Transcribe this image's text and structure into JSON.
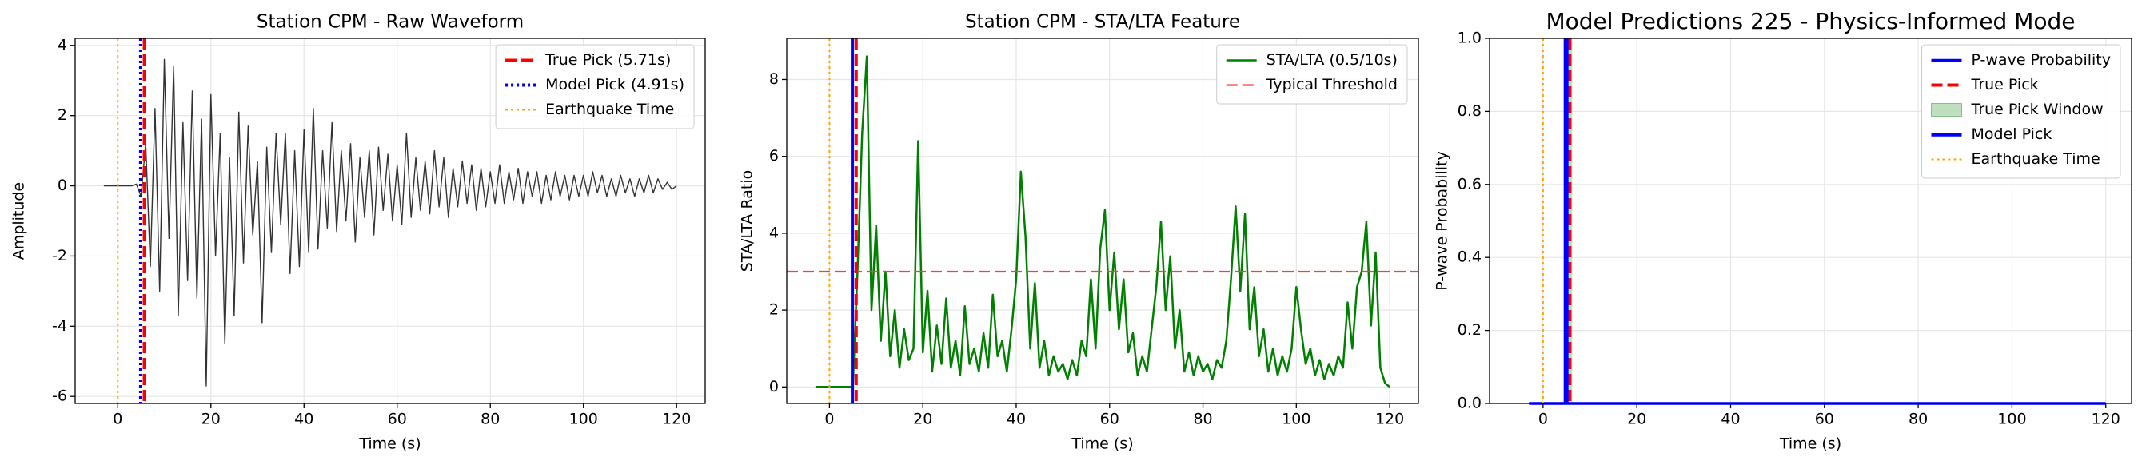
{
  "chart_data": [
    {
      "type": "line",
      "title": "Station CPM - Raw Waveform",
      "xlabel": "Time (s)",
      "ylabel": "Amplitude",
      "xlim": [
        -9.15,
        126.15
      ],
      "xticks": [
        0,
        20,
        40,
        60,
        80,
        100,
        120
      ],
      "ylim": [
        -6.2,
        4.2
      ],
      "yticks": [
        -6,
        -4,
        -2,
        0,
        2,
        4
      ],
      "grid": true,
      "legend": "upper right",
      "series": [
        {
          "color": "#333333",
          "width": 1.4,
          "x": [
            -3,
            -2,
            -1,
            0,
            1,
            2,
            3,
            4,
            5,
            6,
            7,
            8,
            9,
            10,
            11,
            12,
            13,
            14,
            15,
            16,
            17,
            18,
            19,
            20,
            21,
            22,
            23,
            24,
            25,
            26,
            27,
            28,
            29,
            30,
            31,
            32,
            33,
            34,
            35,
            36,
            37,
            38,
            39,
            40,
            41,
            42,
            43,
            44,
            45,
            46,
            47,
            48,
            49,
            50,
            51,
            52,
            53,
            54,
            55,
            56,
            57,
            58,
            59,
            60,
            61,
            62,
            63,
            64,
            65,
            66,
            67,
            68,
            69,
            70,
            71,
            72,
            73,
            74,
            75,
            76,
            77,
            78,
            79,
            80,
            81,
            82,
            83,
            84,
            85,
            86,
            87,
            88,
            89,
            90,
            91,
            92,
            93,
            94,
            95,
            96,
            97,
            98,
            99,
            100,
            101,
            102,
            103,
            104,
            105,
            106,
            107,
            108,
            109,
            110,
            111,
            112,
            113,
            114,
            115,
            116,
            117,
            118,
            119,
            120
          ],
          "values": [
            0,
            0,
            0,
            0,
            0,
            0,
            0,
            0.05,
            -0.3,
            1.2,
            -2.3,
            2.2,
            -3.0,
            3.6,
            -1.5,
            3.4,
            -3.7,
            1.8,
            -2.7,
            2.7,
            -3.2,
            1.9,
            -5.7,
            2.6,
            -2.0,
            1.5,
            -4.5,
            0.8,
            -3.7,
            2.1,
            -2.2,
            1.7,
            -1.4,
            0.7,
            -3.9,
            1.1,
            -1.9,
            1.5,
            -1.1,
            1.5,
            -2.5,
            1.0,
            -2.3,
            1.6,
            -1.9,
            2.2,
            -1.8,
            1.0,
            -1.2,
            1.8,
            -1.3,
            1.0,
            -1.0,
            1.2,
            -1.6,
            0.8,
            -0.9,
            1.0,
            -1.4,
            1.1,
            -0.7,
            0.9,
            -1.0,
            0.6,
            -1.1,
            1.5,
            -0.9,
            0.8,
            -0.7,
            0.7,
            -0.8,
            1.0,
            -0.6,
            0.8,
            -0.9,
            0.5,
            -0.6,
            0.7,
            -0.5,
            0.6,
            -0.7,
            0.5,
            -0.6,
            0.4,
            -0.5,
            0.6,
            -0.5,
            0.4,
            -0.4,
            0.5,
            -0.5,
            0.4,
            -0.3,
            0.4,
            -0.5,
            0.3,
            -0.4,
            0.4,
            -0.3,
            0.3,
            -0.4,
            0.3,
            -0.3,
            0.3,
            -0.3,
            0.4,
            -0.2,
            0.3,
            -0.3,
            0.2,
            -0.3,
            0.3,
            -0.2,
            0.2,
            -0.3,
            0.2,
            -0.2,
            0.3,
            -0.2,
            0.2,
            -0.1,
            0.1,
            -0.1,
            0.0
          ]
        }
      ],
      "overlays": [
        {
          "kind": "vline",
          "name": "True Pick (5.71s)",
          "x": 5.71,
          "color": "red",
          "style": "dashed",
          "width": 4
        },
        {
          "kind": "vline",
          "name": "Model Pick (4.91s)",
          "x": 4.91,
          "color": "blue",
          "style": "dotted",
          "width": 4
        },
        {
          "kind": "vline",
          "name": "Earthquake Time",
          "x": 0,
          "color": "orange",
          "style": "dotted",
          "width": 2
        }
      ]
    },
    {
      "type": "line",
      "title": "Station CPM - STA/LTA Feature",
      "xlabel": "Time (s)",
      "ylabel": "STA/LTA Ratio",
      "xlim": [
        -9.15,
        126.15
      ],
      "xticks": [
        0,
        20,
        40,
        60,
        80,
        100,
        120
      ],
      "ylim": [
        -0.43,
        9.07
      ],
      "yticks": [
        0,
        2,
        4,
        6,
        8
      ],
      "grid": true,
      "legend": "upper right",
      "series": [
        {
          "name": "STA/LTA (0.5/10s)",
          "color": "green",
          "width": 2.5,
          "x": [
            -3,
            -2,
            -1,
            0,
            1,
            2,
            3,
            4,
            5,
            6,
            7,
            8,
            9,
            10,
            11,
            12,
            13,
            14,
            15,
            16,
            17,
            18,
            19,
            20,
            21,
            22,
            23,
            24,
            25,
            26,
            27,
            28,
            29,
            30,
            31,
            32,
            33,
            34,
            35,
            36,
            37,
            38,
            39,
            40,
            41,
            42,
            43,
            44,
            45,
            46,
            47,
            48,
            49,
            50,
            51,
            52,
            53,
            54,
            55,
            56,
            57,
            58,
            59,
            60,
            61,
            62,
            63,
            64,
            65,
            66,
            67,
            68,
            69,
            70,
            71,
            72,
            73,
            74,
            75,
            76,
            77,
            78,
            79,
            80,
            81,
            82,
            83,
            84,
            85,
            86,
            87,
            88,
            89,
            90,
            91,
            92,
            93,
            94,
            95,
            96,
            97,
            98,
            99,
            100,
            101,
            102,
            103,
            104,
            105,
            106,
            107,
            108,
            109,
            110,
            111,
            112,
            113,
            114,
            115,
            116,
            117,
            118,
            119,
            120
          ],
          "values": [
            0,
            0,
            0,
            0,
            0,
            0,
            0,
            0,
            0,
            3.0,
            6.6,
            8.6,
            2.0,
            4.2,
            1.2,
            3.0,
            0.8,
            2.0,
            0.5,
            1.5,
            0.7,
            1.0,
            6.4,
            0.9,
            2.5,
            0.4,
            1.6,
            0.6,
            2.3,
            0.5,
            1.2,
            0.3,
            2.1,
            0.6,
            1.0,
            0.4,
            1.4,
            0.5,
            2.4,
            0.8,
            1.2,
            0.4,
            1.5,
            2.8,
            5.6,
            3.9,
            1.0,
            2.7,
            0.5,
            1.2,
            0.3,
            0.8,
            0.4,
            0.6,
            0.2,
            0.7,
            0.3,
            1.2,
            0.8,
            2.8,
            1.0,
            3.6,
            4.6,
            2.0,
            3.5,
            1.5,
            2.8,
            0.9,
            1.4,
            0.3,
            0.8,
            0.4,
            1.5,
            2.6,
            4.3,
            2.0,
            3.4,
            1.0,
            2.0,
            0.4,
            0.9,
            0.3,
            0.8,
            0.4,
            0.6,
            0.2,
            0.7,
            0.5,
            1.2,
            2.8,
            4.7,
            2.5,
            4.5,
            1.5,
            2.6,
            0.8,
            1.5,
            0.4,
            1.0,
            0.3,
            0.8,
            0.4,
            1.0,
            2.6,
            1.5,
            0.6,
            1.0,
            0.3,
            0.7,
            0.2,
            0.6,
            0.3,
            0.8,
            0.5,
            2.2,
            1.0,
            2.6,
            3.0,
            4.3,
            1.6,
            3.5,
            0.5,
            0.1,
            0.0
          ]
        }
      ],
      "overlays": [
        {
          "kind": "hline",
          "name": "Typical Threshold",
          "y": 3,
          "color": "#f04040",
          "style": "dashed",
          "width": 2.2
        },
        {
          "kind": "vline",
          "x": 4.91,
          "color": "blue",
          "style": "solid",
          "width": 4
        },
        {
          "kind": "vline",
          "x": 5.71,
          "color": "red",
          "style": "dashed",
          "width": 4
        },
        {
          "kind": "vline",
          "x": 0,
          "color": "orange",
          "style": "dotted",
          "width": 2
        }
      ]
    },
    {
      "type": "line",
      "title": "Model Predictions 225 - Physics-Informed Mode",
      "xlabel": "Time (s)",
      "ylabel": "P-wave Probability",
      "xlim": [
        -11.4,
        125.5
      ],
      "xticks": [
        0,
        20,
        40,
        60,
        80,
        100,
        120
      ],
      "ylim": [
        0,
        1
      ],
      "yticks": [
        {
          "value": 0,
          "label": "0.0"
        },
        0.2,
        0.4,
        0.6,
        0.8,
        {
          "value": 1,
          "label": "1.0"
        }
      ],
      "grid": true,
      "legend": "upper right",
      "title_size": 28,
      "series": [
        {
          "name": "P-wave Probability",
          "color": "blue",
          "width": 3.5,
          "x": [
            -3,
            120
          ],
          "values": [
            0,
            0
          ]
        }
      ],
      "overlays": [
        {
          "kind": "vline",
          "name": "True Pick",
          "x": 5.71,
          "color": "red",
          "style": "dashed",
          "width": 4
        },
        {
          "kind": "vspan",
          "name": "True Pick Window",
          "xmin": 5.21,
          "xmax": 6.21,
          "color": "green",
          "alpha": 0.25
        },
        {
          "kind": "vline",
          "name": "Model Pick",
          "x": 4.91,
          "color": "blue",
          "style": "solid",
          "width": 6
        },
        {
          "kind": "vline",
          "name": "Earthquake Time",
          "x": 0,
          "color": "orange",
          "style": "dotted",
          "width": 2
        }
      ]
    }
  ]
}
